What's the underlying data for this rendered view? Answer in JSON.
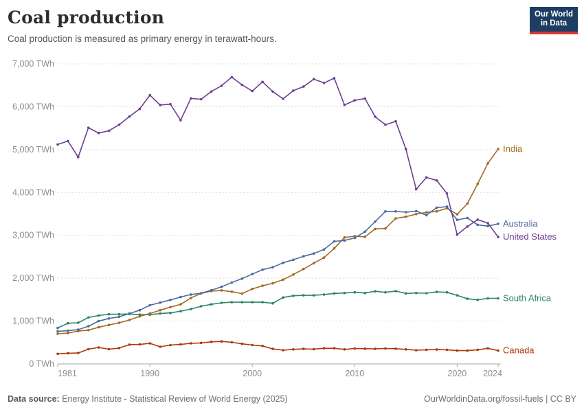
{
  "header": {
    "title": "Coal production",
    "subtitle": "Coal production is measured as primary energy in terawatt-hours."
  },
  "logo": {
    "line1": "Our World",
    "line2": "in Data",
    "bg_color": "#1D3D63",
    "bar_color": "#D7382B"
  },
  "footer": {
    "source_label": "Data source:",
    "source_text": " Energy Institute - Statistical Review of World Energy (2025)",
    "right_text": "OurWorldinData.org/fossil-fuels | CC BY"
  },
  "chart_data": {
    "type": "line",
    "title": "Coal production",
    "unit_suffix": " TWh",
    "x": [
      1981,
      1982,
      1983,
      1984,
      1985,
      1986,
      1987,
      1988,
      1989,
      1990,
      1991,
      1992,
      1993,
      1994,
      1995,
      1996,
      1997,
      1998,
      1999,
      2000,
      2001,
      2002,
      2003,
      2004,
      2005,
      2006,
      2007,
      2008,
      2009,
      2010,
      2011,
      2012,
      2013,
      2014,
      2015,
      2016,
      2017,
      2018,
      2019,
      2020,
      2021,
      2022,
      2023,
      2024
    ],
    "xticks": [
      1981,
      1990,
      2000,
      2010,
      2020,
      2024
    ],
    "yticks": [
      0,
      1000,
      2000,
      3000,
      4000,
      5000,
      6000,
      7000
    ],
    "ylim": [
      0,
      7000
    ],
    "xlim": [
      1981,
      2024
    ],
    "grid": "horizontal-dashed",
    "legend_position": "end-of-line-labels",
    "series": [
      {
        "name": "United States",
        "color": "#6D3E91",
        "values": [
          5120,
          5200,
          4825,
          5510,
          5385,
          5440,
          5580,
          5770,
          5950,
          6270,
          6040,
          6060,
          5685,
          6195,
          6175,
          6355,
          6490,
          6690,
          6510,
          6365,
          6580,
          6355,
          6185,
          6375,
          6470,
          6645,
          6555,
          6665,
          6040,
          6150,
          6190,
          5765,
          5580,
          5660,
          5010,
          4075,
          4350,
          4280,
          3975,
          3015,
          3205,
          3365,
          3285,
          2960
        ]
      },
      {
        "name": "India",
        "color": "#A2691E",
        "values": [
          705,
          720,
          765,
          790,
          855,
          910,
          960,
          1025,
          1110,
          1175,
          1255,
          1325,
          1390,
          1540,
          1645,
          1700,
          1715,
          1685,
          1640,
          1750,
          1825,
          1880,
          1965,
          2085,
          2215,
          2350,
          2480,
          2695,
          2950,
          2980,
          2965,
          3150,
          3160,
          3395,
          3435,
          3495,
          3535,
          3560,
          3630,
          3490,
          3740,
          4200,
          4680,
          5010
        ]
      },
      {
        "name": "Australia",
        "color": "#4C6A9C",
        "values": [
          760,
          775,
          800,
          880,
          1000,
          1060,
          1100,
          1175,
          1255,
          1370,
          1430,
          1495,
          1560,
          1620,
          1650,
          1720,
          1800,
          1900,
          1990,
          2095,
          2200,
          2255,
          2360,
          2430,
          2510,
          2575,
          2670,
          2860,
          2880,
          2940,
          3085,
          3320,
          3560,
          3560,
          3540,
          3565,
          3470,
          3645,
          3670,
          3360,
          3405,
          3245,
          3215,
          3270
        ]
      },
      {
        "name": "South Africa",
        "color": "#2C8465",
        "values": [
          840,
          950,
          960,
          1085,
          1130,
          1160,
          1160,
          1165,
          1150,
          1150,
          1175,
          1190,
          1230,
          1280,
          1345,
          1390,
          1425,
          1440,
          1440,
          1440,
          1440,
          1415,
          1550,
          1590,
          1600,
          1600,
          1620,
          1645,
          1655,
          1670,
          1655,
          1695,
          1670,
          1700,
          1645,
          1655,
          1650,
          1680,
          1670,
          1600,
          1520,
          1495,
          1530,
          1530
        ]
      },
      {
        "name": "Canada",
        "color": "#B13507",
        "values": [
          235,
          250,
          255,
          345,
          385,
          345,
          370,
          450,
          455,
          480,
          400,
          440,
          455,
          480,
          490,
          515,
          525,
          505,
          470,
          440,
          420,
          350,
          320,
          340,
          350,
          345,
          365,
          365,
          340,
          360,
          355,
          350,
          360,
          355,
          340,
          320,
          330,
          335,
          330,
          310,
          310,
          330,
          363,
          310
        ]
      }
    ]
  }
}
